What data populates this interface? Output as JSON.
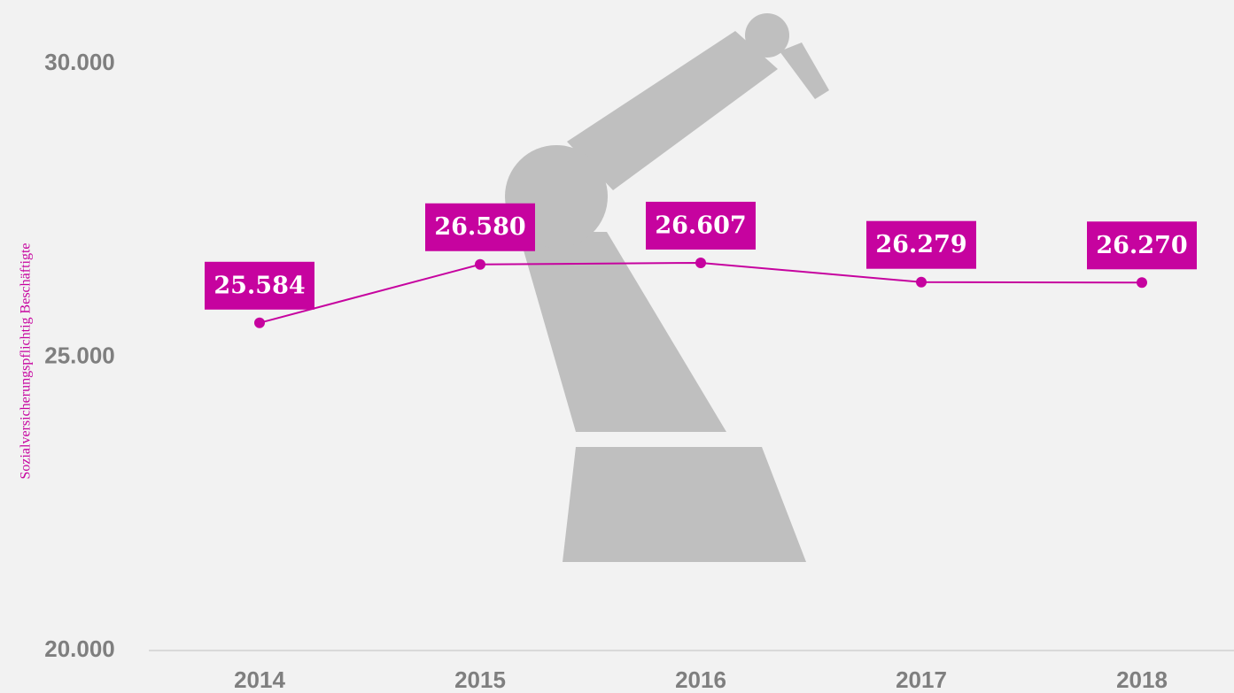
{
  "chart_data": {
    "type": "line",
    "y_label": "Sozialversicherungspflichtig Beschäftigte",
    "categories": [
      "2014",
      "2015",
      "2016",
      "2017",
      "2018"
    ],
    "series": [
      {
        "name": "Sozialversicherungspflichtig Beschäftigte",
        "color": "#c6039f",
        "values": [
          25584,
          26580,
          26607,
          26279,
          26270
        ],
        "value_labels": [
          "25.584",
          "26.580",
          "26.607",
          "26.279",
          "26.270"
        ]
      }
    ],
    "ylim": [
      20000,
      30000
    ],
    "yticks": [
      {
        "value": 20000,
        "label": "20.000"
      },
      {
        "value": 25000,
        "label": "25.000"
      },
      {
        "value": 30000,
        "label": "30.000"
      }
    ]
  }
}
